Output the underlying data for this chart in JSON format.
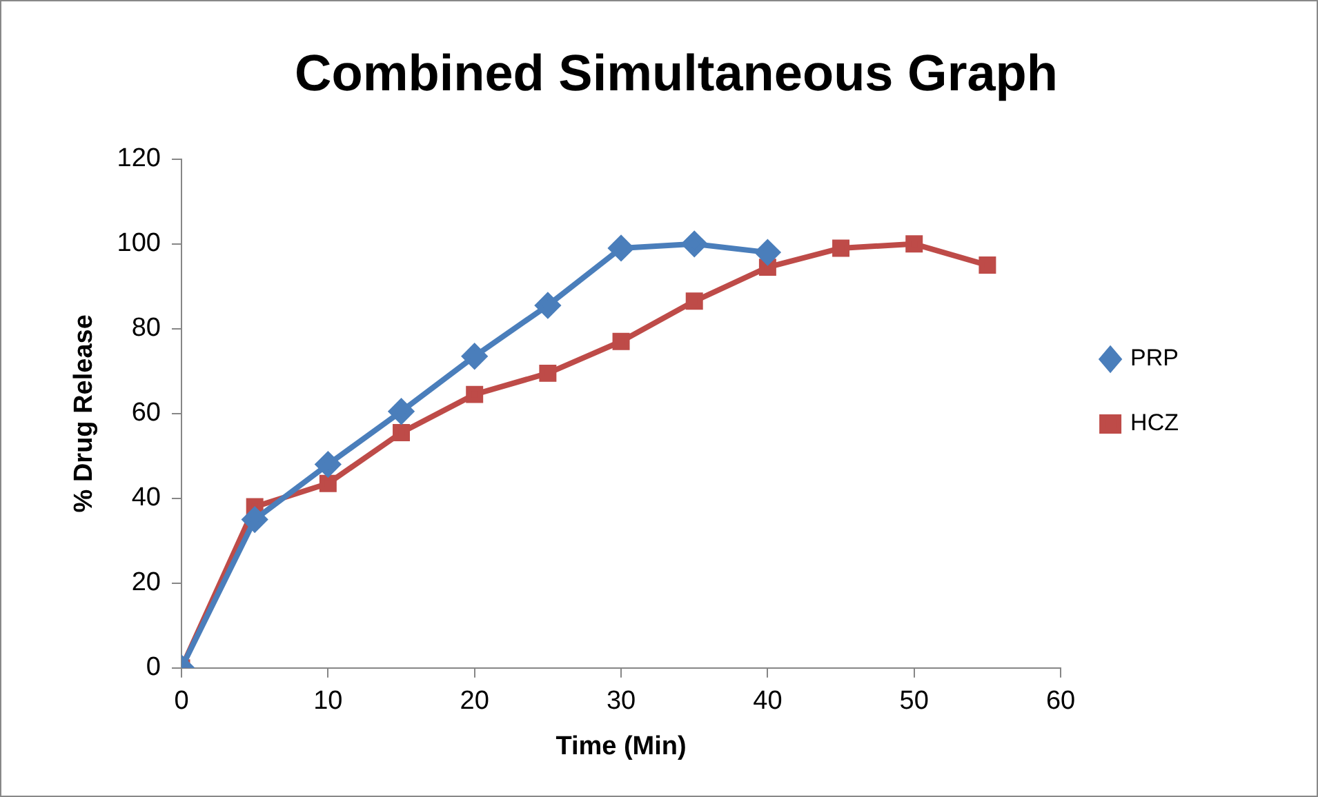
{
  "chart_data": {
    "type": "line",
    "title": "Combined Simultaneous Graph",
    "xlabel": "Time (Min)",
    "ylabel": "% Drug Release",
    "xlim": [
      0,
      60
    ],
    "xticks": [
      0,
      10,
      20,
      30,
      40,
      50,
      60
    ],
    "ylim": [
      0,
      120
    ],
    "yticks": [
      0,
      20,
      40,
      60,
      80,
      100,
      120
    ],
    "grid": false,
    "legend": "right",
    "series": [
      {
        "name": "PRP",
        "color": "#4a7ebb",
        "marker": "diamond",
        "x": [
          0,
          5,
          10,
          15,
          20,
          25,
          30,
          35,
          40
        ],
        "values": [
          0,
          35,
          48,
          60.5,
          73.5,
          85.5,
          99,
          100,
          98
        ]
      },
      {
        "name": "HCZ",
        "color": "#be4b48",
        "marker": "square",
        "x": [
          0,
          5,
          10,
          15,
          20,
          25,
          30,
          35,
          40,
          45,
          50,
          55
        ],
        "values": [
          0,
          38,
          43.5,
          55.5,
          64.5,
          69.5,
          77,
          86.5,
          94.5,
          99,
          100,
          95
        ]
      }
    ]
  }
}
